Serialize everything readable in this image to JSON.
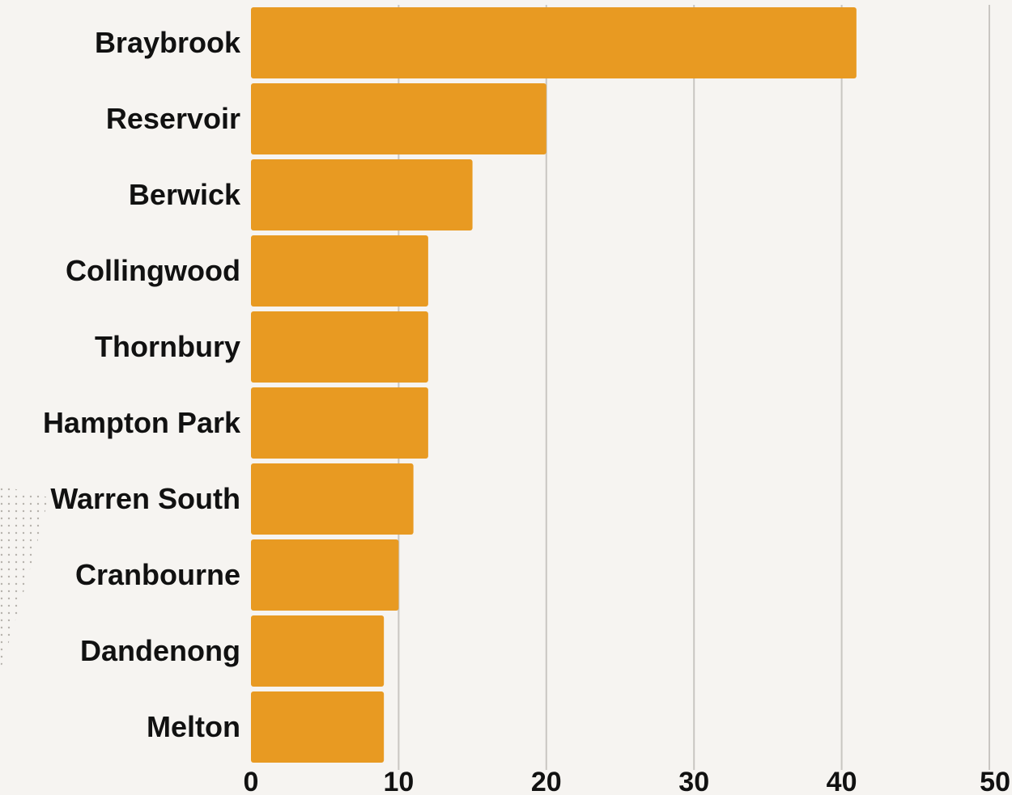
{
  "chart_data": {
    "type": "bar",
    "orientation": "horizontal",
    "categories": [
      "Braybrook",
      "Reservoir",
      "Berwick",
      "Collingwood",
      "Thornbury",
      "Hampton Park",
      "Warren South",
      "Cranbourne",
      "Dandenong",
      "Melton"
    ],
    "values": [
      41,
      20,
      15,
      12,
      12,
      12,
      11,
      10,
      9,
      9
    ],
    "xlim": [
      0,
      50
    ],
    "xticks": [
      "0",
      "10",
      "20",
      "30",
      "40",
      "50"
    ],
    "grid": true,
    "bar_color": "#e89a22",
    "grid_color": "#c9c6c2",
    "background_color": "#f6f4f1"
  }
}
